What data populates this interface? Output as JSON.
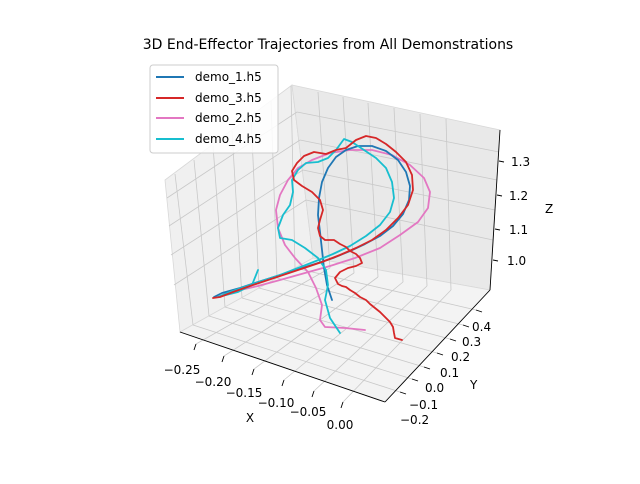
{
  "chart_data": {
    "type": "line",
    "projection": "3d",
    "title": "3D End-Effector Trajectories from All Demonstrations",
    "xlabel": "X",
    "ylabel": "Y",
    "zlabel": "Z",
    "xticks": [
      "−0.25",
      "−0.20",
      "−0.15",
      "−0.10",
      "−0.05",
      "0.00"
    ],
    "yticks": [
      "−0.2",
      "−0.1",
      "0.0",
      "0.1",
      "0.2",
      "0.3",
      "0.4"
    ],
    "zticks": [
      "1.0",
      "1.1",
      "1.2",
      "1.3"
    ],
    "grid": true,
    "legend_position": "top-left",
    "legend": [
      "demo_1.h5",
      "demo_3.h5",
      "demo_2.h5",
      "demo_4.h5"
    ],
    "series": [
      {
        "name": "demo_1.h5",
        "color": "#1f77b4"
      },
      {
        "name": "demo_3.h5",
        "color": "#d62728"
      },
      {
        "name": "demo_2.h5",
        "color": "#e377c2"
      },
      {
        "name": "demo_4.h5",
        "color": "#17becf"
      }
    ]
  }
}
